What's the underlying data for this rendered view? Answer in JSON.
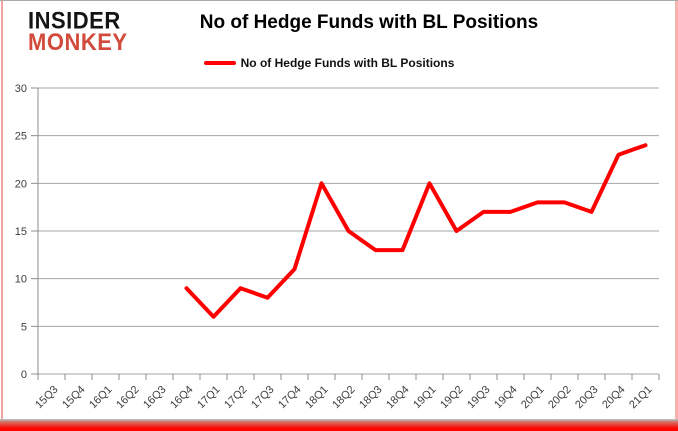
{
  "logo": {
    "line1": "INSIDER",
    "line2": "MONKEY"
  },
  "header": {
    "title": "No of Hedge Funds with BL Positions"
  },
  "legend": {
    "label": "No of Hedge Funds with BL Positions"
  },
  "colors": {
    "series_red": "#ff0000",
    "logo_black": "#141414",
    "logo_red": "#d24a3c",
    "grid": "#a6a6a6",
    "axis": "#8c8c8c",
    "tick_text": "#3d3d3d",
    "border_glow": "#fb0a02"
  },
  "chart_data": {
    "type": "line",
    "title": "No of Hedge Funds with BL Positions",
    "categories": [
      "15Q3",
      "15Q4",
      "16Q1",
      "16Q2",
      "16Q3",
      "16Q4",
      "17Q1",
      "17Q2",
      "17Q3",
      "17Q4",
      "18Q1",
      "18Q2",
      "18Q3",
      "18Q4",
      "19Q1",
      "19Q2",
      "19Q3",
      "19Q4",
      "20Q1",
      "20Q2",
      "20Q3",
      "20Q4",
      "21Q1"
    ],
    "series": [
      {
        "name": "No of Hedge Funds with BL Positions",
        "color": "#ff0000",
        "values": [
          null,
          null,
          null,
          null,
          null,
          9,
          6,
          9,
          8,
          11,
          20,
          15,
          13,
          13,
          20,
          15,
          17,
          17,
          18,
          18,
          17,
          23,
          24
        ]
      }
    ],
    "xlabel": "",
    "ylabel": "",
    "ylim": [
      0,
      30
    ],
    "yticks": [
      0,
      5,
      10,
      15,
      20,
      25,
      30
    ],
    "grid": true,
    "legend_position": "top-center"
  }
}
